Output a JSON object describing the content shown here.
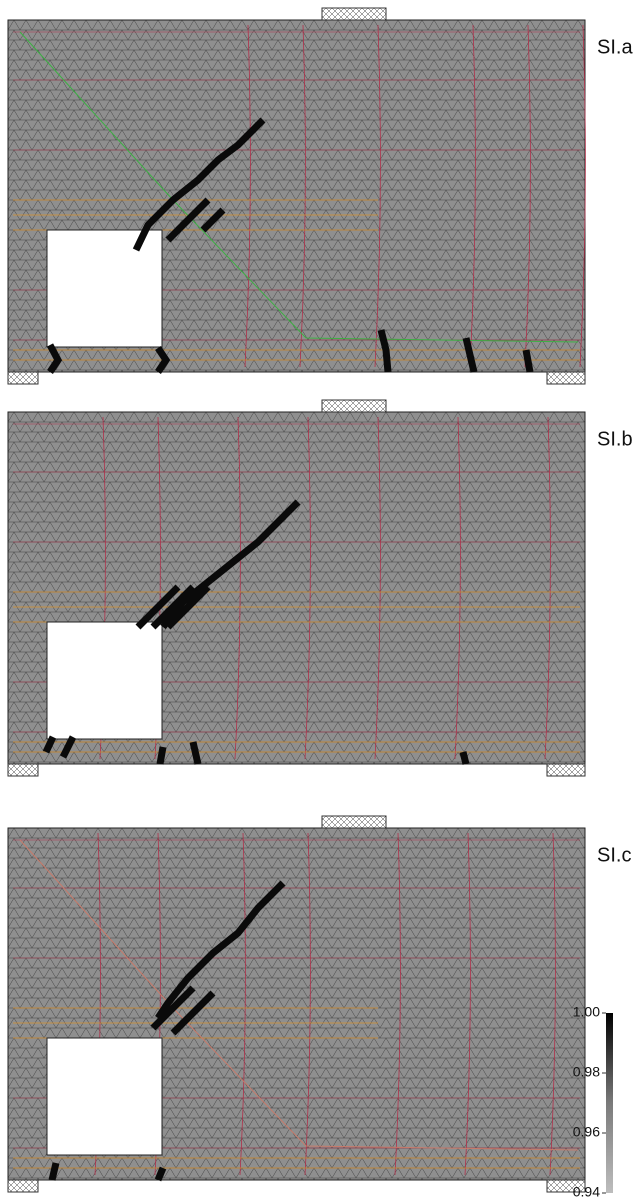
{
  "panels": [
    {
      "label": "SI.a"
    },
    {
      "label": "SI.b"
    },
    {
      "label": "SI.c"
    }
  ],
  "colorbar": {
    "lim": [
      0.94,
      1.0
    ],
    "ticks": [
      {
        "value": 1.0,
        "label": "1.00"
      },
      {
        "value": 0.98,
        "label": "0.98"
      },
      {
        "value": 0.96,
        "label": "0.96"
      },
      {
        "value": 0.94,
        "label": "0.94"
      }
    ]
  }
}
